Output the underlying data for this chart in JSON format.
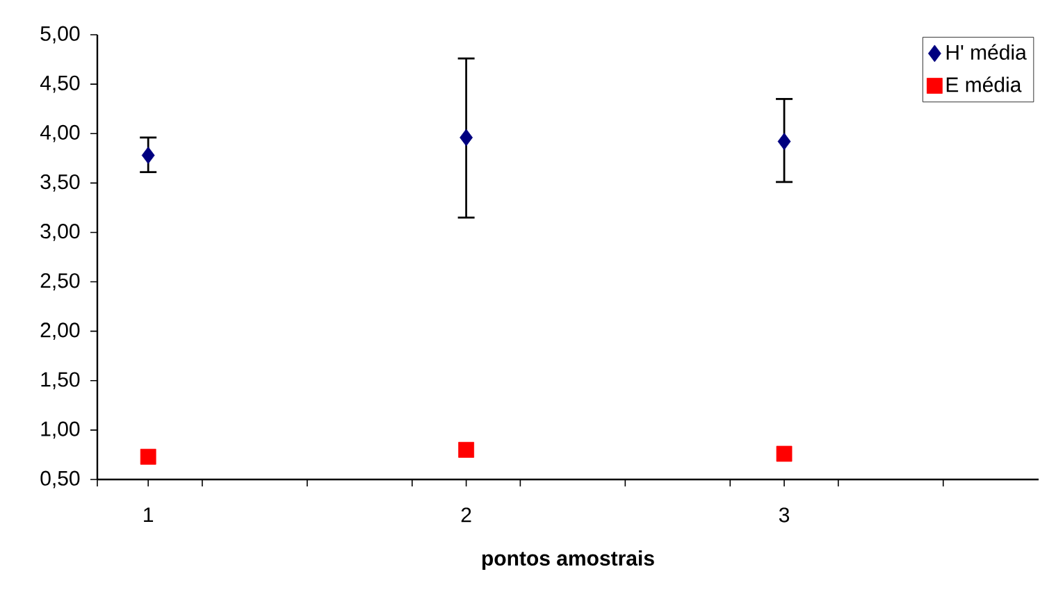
{
  "chart_data": {
    "type": "scatter",
    "xlabel": "pontos amostrais",
    "x": [
      1,
      2,
      3
    ],
    "xlim": [
      0.84,
      3.8
    ],
    "xticks": [
      {
        "value": 0.84,
        "label": null
      },
      {
        "value": 1,
        "label": "1"
      },
      {
        "value": 1.17,
        "label": null
      },
      {
        "value": 1.5,
        "label": null
      },
      {
        "value": 1.83,
        "label": null
      },
      {
        "value": 2,
        "label": "2"
      },
      {
        "value": 2.17,
        "label": null
      },
      {
        "value": 2.5,
        "label": null
      },
      {
        "value": 2.83,
        "label": null
      },
      {
        "value": 3,
        "label": "3"
      },
      {
        "value": 3.17,
        "label": null
      },
      {
        "value": 3.5,
        "label": null
      }
    ],
    "ylim": [
      0.5,
      5
    ],
    "yticks": [
      {
        "value": 0.5,
        "label": "0,50"
      },
      {
        "value": 1,
        "label": "1,00"
      },
      {
        "value": 1.5,
        "label": "1,50"
      },
      {
        "value": 2,
        "label": "2,00"
      },
      {
        "value": 2.5,
        "label": "2,50"
      },
      {
        "value": 3,
        "label": "3,00"
      },
      {
        "value": 3.5,
        "label": "3,50"
      },
      {
        "value": 4,
        "label": "4,00"
      },
      {
        "value": 4.5,
        "label": "4,50"
      },
      {
        "value": 5,
        "label": "5,00"
      }
    ],
    "series": [
      {
        "name": "H' média",
        "color": "#000080",
        "marker": "diamond",
        "values": [
          3.78,
          3.96,
          3.92
        ],
        "errors": [
          [
            3.61,
            3.96
          ],
          [
            3.15,
            4.76
          ],
          [
            3.51,
            4.35
          ]
        ]
      },
      {
        "name": "E média",
        "color": "#ff0000",
        "marker": "square",
        "values": [
          0.73,
          0.8,
          0.76
        ]
      }
    ],
    "legend": "top right",
    "grid": false
  }
}
